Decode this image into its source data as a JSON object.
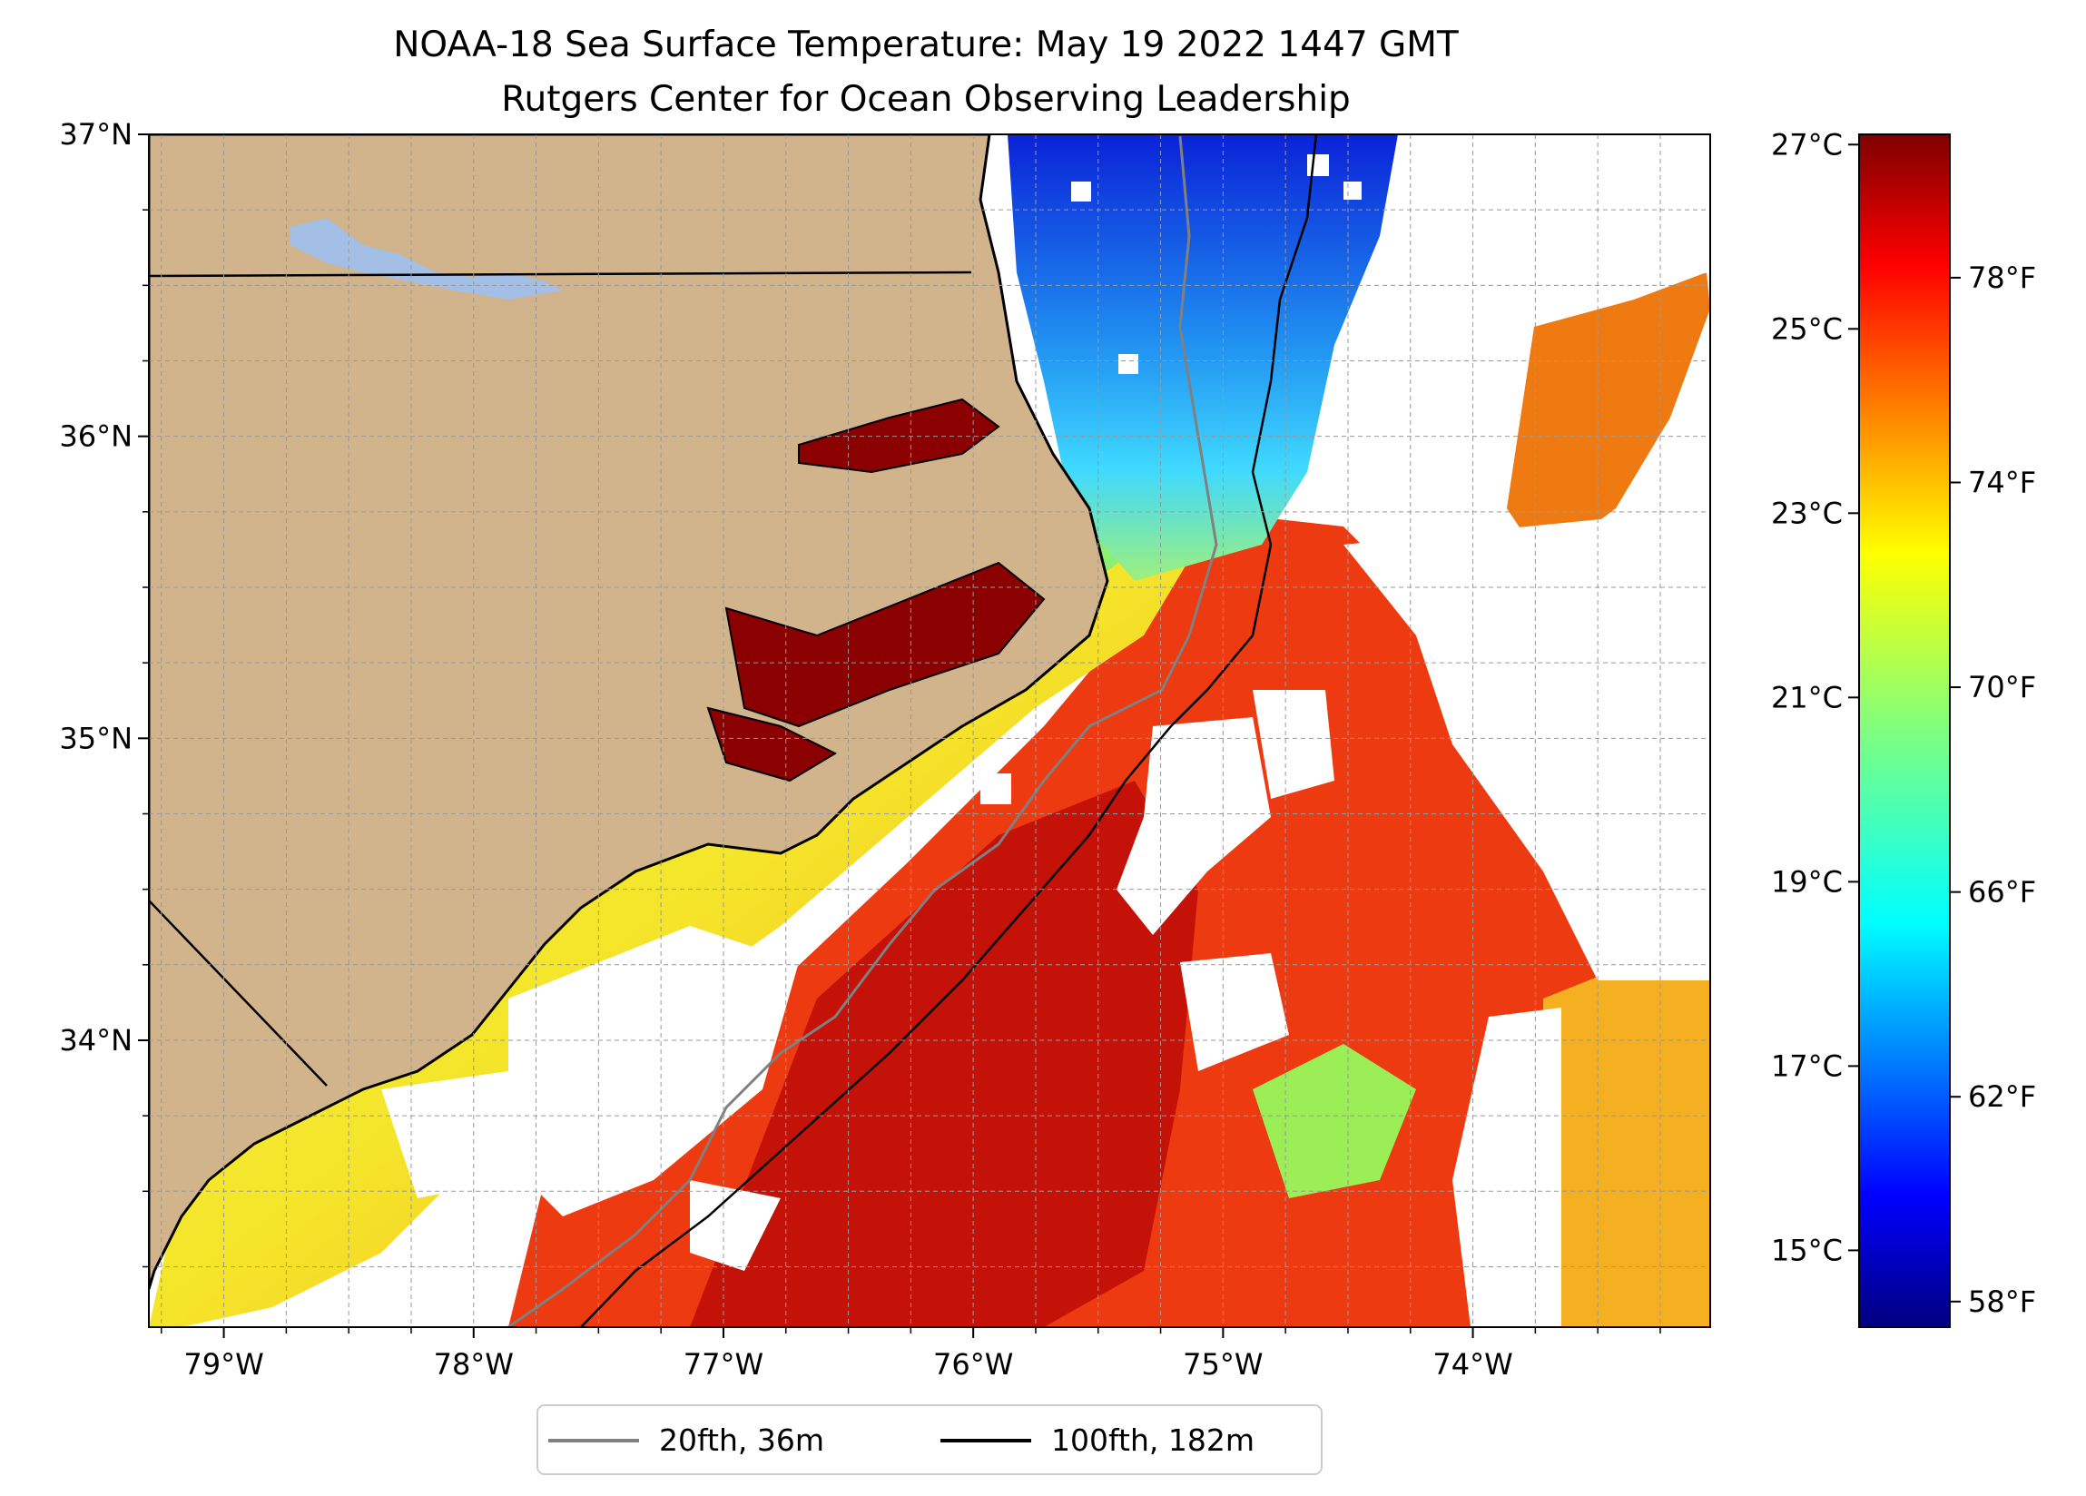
{
  "title": {
    "line1": "NOAA-18 Sea Surface Temperature: May 19 2022 1447 GMT",
    "line2": "Rutgers Center for Ocean Observing Leadership"
  },
  "map": {
    "lon_range": [
      -79.3,
      -73.05
    ],
    "lat_range": [
      33.05,
      37.0
    ],
    "lat_ticks": [
      {
        "value": 37,
        "label": "37°N"
      },
      {
        "value": 36,
        "label": "36°N"
      },
      {
        "value": 35,
        "label": "35°N"
      },
      {
        "value": 34,
        "label": "34°N"
      }
    ],
    "lon_ticks": [
      {
        "value": -79,
        "label": "79°W"
      },
      {
        "value": -78,
        "label": "78°W"
      },
      {
        "value": -77,
        "label": "77°W"
      },
      {
        "value": -76,
        "label": "76°W"
      },
      {
        "value": -75,
        "label": "75°W"
      },
      {
        "value": -74,
        "label": "74°W"
      }
    ],
    "grid": "dashed",
    "land_color": "#d2b48c",
    "lake_color": "#a3bfe6",
    "cloud_mask_color": "#ffffff"
  },
  "colorbar": {
    "colormap": "jet",
    "celsius_ticks": [
      "27°C",
      "25°C",
      "23°C",
      "21°C",
      "19°C",
      "17°C",
      "15°C"
    ],
    "fahrenheit_ticks": [
      "78°F",
      "74°F",
      "70°F",
      "66°F",
      "62°F",
      "58°F"
    ]
  },
  "legend": {
    "placement": "bottom-center",
    "items": [
      {
        "label": "20fth, 36m",
        "color": "#808080"
      },
      {
        "label": "100fth, 182m",
        "color": "#000000"
      }
    ]
  }
}
